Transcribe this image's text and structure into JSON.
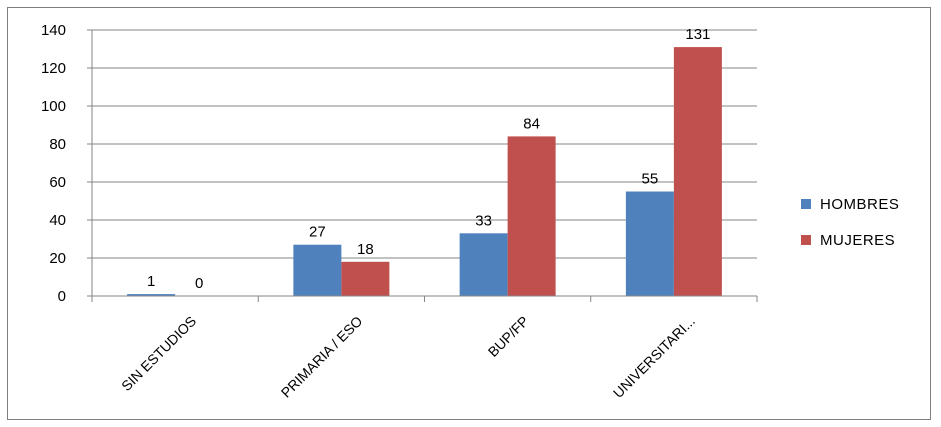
{
  "chart_data": {
    "type": "bar",
    "categories": [
      "SIN ESTUDIOS",
      "PRIMARIA / ESO",
      "BUP/FP",
      "UNIVERSITARI..."
    ],
    "series": [
      {
        "name": "HOMBRES",
        "values": [
          1,
          27,
          33,
          55
        ],
        "color": "#4f81bd"
      },
      {
        "name": "MUJERES",
        "values": [
          0,
          18,
          84,
          131
        ],
        "color": "#c0504d"
      }
    ],
    "yticks": [
      "0",
      "20",
      "40",
      "60",
      "80",
      "100",
      "120",
      "140"
    ],
    "ylim": [
      0,
      140
    ],
    "grid": true,
    "legend_position": "right",
    "title": "",
    "xlabel": "",
    "ylabel": ""
  }
}
